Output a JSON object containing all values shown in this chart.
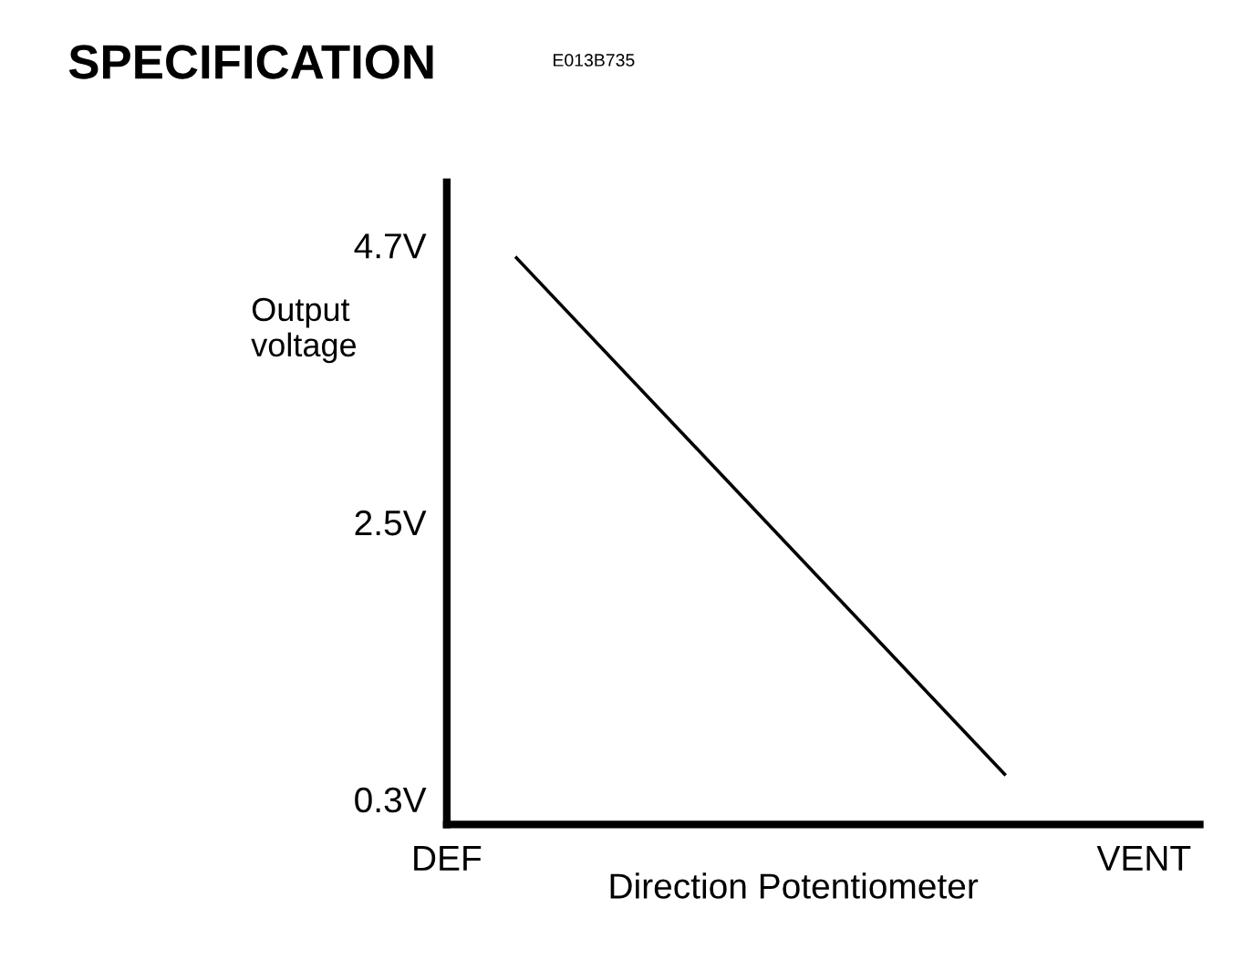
{
  "chart_data": {
    "type": "line",
    "title": "SPECIFICATION",
    "annotations": [
      "E013B735"
    ],
    "xlabel": "Direction Potentiometer",
    "ylabel": "Output\nvoltage",
    "categories": [
      "DEF",
      null,
      null,
      null,
      null,
      null,
      null,
      null,
      null,
      null,
      "VENT"
    ],
    "values": [
      null,
      4.6,
      null,
      null,
      null,
      null,
      null,
      null,
      0.5,
      null,
      null
    ],
    "color": "#000000",
    "ylim": [
      0.1,
      5.2
    ],
    "yticks": [
      {
        "value": 0.3,
        "label": "0.3V"
      },
      {
        "value": 2.5,
        "label": "2.5V"
      },
      {
        "value": 4.7,
        "label": "4.7V"
      }
    ],
    "grid": false,
    "legend": false
  }
}
